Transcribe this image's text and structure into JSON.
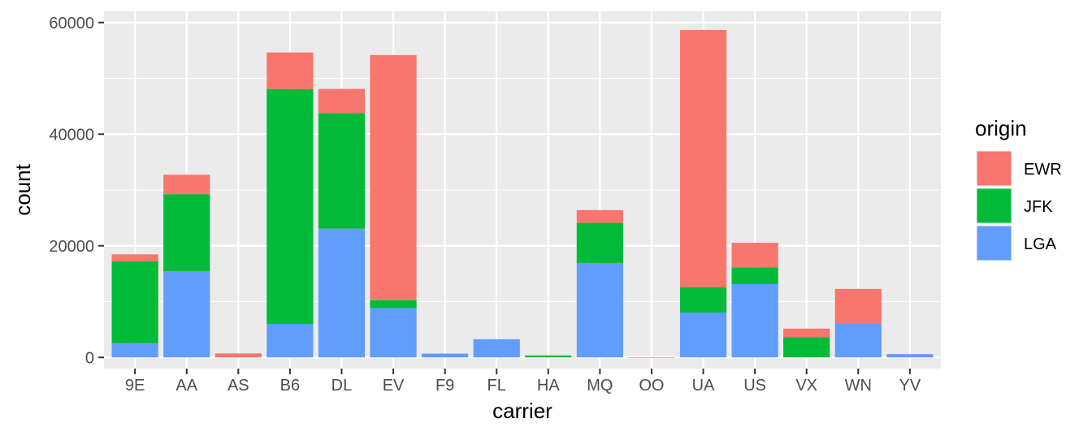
{
  "chart_data": {
    "type": "bar",
    "stacked": true,
    "xlabel": "carrier",
    "ylabel": "count",
    "ylim": [
      -2000,
      62000
    ],
    "y_ticks": [
      0,
      20000,
      40000,
      60000
    ],
    "y_minor_ticks": [
      10000,
      30000,
      50000
    ],
    "categories": [
      "9E",
      "AA",
      "AS",
      "B6",
      "DL",
      "EV",
      "F9",
      "FL",
      "HA",
      "MQ",
      "OO",
      "UA",
      "US",
      "VX",
      "WN",
      "YV"
    ],
    "legend": {
      "title": "origin",
      "position": "right",
      "order": [
        "EWR",
        "JFK",
        "LGA"
      ]
    },
    "stack_order_bottom_to_top": [
      "LGA",
      "JFK",
      "EWR"
    ],
    "series": [
      {
        "name": "EWR",
        "color": "#F8766D",
        "values": [
          1268,
          3487,
          714,
          6557,
          4342,
          43939,
          0,
          0,
          0,
          2276,
          6,
          46087,
          4405,
          1566,
          6188,
          0
        ]
      },
      {
        "name": "JFK",
        "color": "#00BA38",
        "values": [
          14651,
          13783,
          0,
          42076,
          20701,
          1408,
          0,
          0,
          342,
          7193,
          0,
          4534,
          2995,
          3596,
          0,
          0
        ]
      },
      {
        "name": "LGA",
        "color": "#619CFF",
        "values": [
          2541,
          15459,
          0,
          6002,
          23067,
          8826,
          685,
          3260,
          0,
          16928,
          26,
          8044,
          13136,
          0,
          6087,
          601
        ]
      }
    ],
    "grid": true,
    "panel_background": "#EBEBEB",
    "grid_color": "#FFFFFF"
  }
}
